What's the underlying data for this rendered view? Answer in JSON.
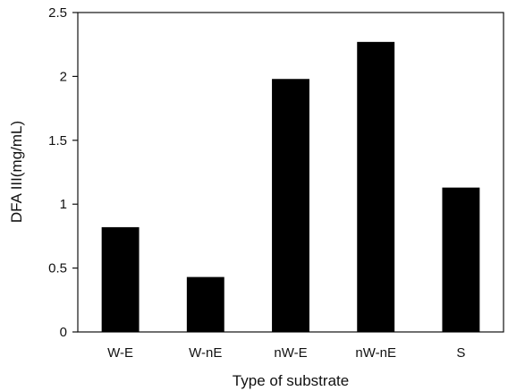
{
  "chart_data": {
    "type": "bar",
    "title": "",
    "xlabel": "Type of substrate",
    "ylabel": "DFA III(mg/mL)",
    "categories": [
      "W-E",
      "W-nE",
      "nW-E",
      "nW-nE",
      "S"
    ],
    "values": [
      0.82,
      0.43,
      1.98,
      2.27,
      1.13
    ],
    "ylim": [
      0,
      2.5
    ],
    "yticks": [
      0,
      0.5,
      1,
      1.5,
      2,
      2.5
    ],
    "ytick_labels": [
      "0",
      "0.5",
      "1",
      "1.5",
      "2",
      "2.5"
    ],
    "grid": false,
    "legend": "none",
    "bar_color": "#000000"
  }
}
